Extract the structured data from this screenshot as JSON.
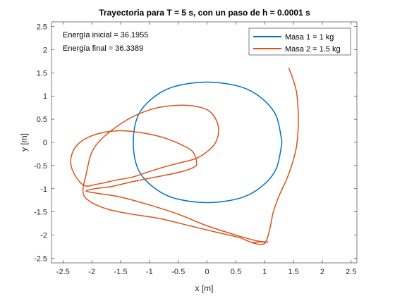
{
  "chart_data": {
    "type": "line",
    "title": "Trayectoria para T = 5 s, con un paso de h = 0.0001 s",
    "xlabel": "x [m]",
    "ylabel": "y [m]",
    "xlim": [
      -2.7,
      2.6
    ],
    "ylim": [
      -2.6,
      2.6
    ],
    "xticks": [
      -2.5,
      -2,
      -1.5,
      -1,
      -0.5,
      0,
      0.5,
      1,
      1.5,
      2,
      2.5
    ],
    "xtick_labels": [
      "-2.5",
      "-2",
      "-1.5",
      "-1",
      "-0.5",
      "0",
      "0.5",
      "1",
      "1.5",
      "2",
      "2.5"
    ],
    "yticks": [
      -2.5,
      -2,
      -1.5,
      -1,
      -0.5,
      0,
      0.5,
      1,
      1.5,
      2,
      2.5
    ],
    "ytick_labels": [
      "-2.5",
      "-2",
      "-1.5",
      "-1",
      "-0.5",
      "0",
      "0.5",
      "1",
      "1.5",
      "2",
      "2.5"
    ],
    "grid": false,
    "box": true,
    "legend_position": "top-right",
    "annotations": [
      "Energía inicial = 36.1955",
      "Energía final = 36.3389"
    ],
    "annotation_position": "top-left",
    "series": [
      {
        "name": "Masa 1 = 1 kg",
        "color": "#0072BD",
        "x": [
          1.3,
          1.2,
          0.95,
          0.58,
          0.0,
          -0.58,
          -0.95,
          -1.2,
          -1.28,
          -1.2,
          -0.95,
          -0.58,
          0.0,
          0.58,
          0.95,
          1.2,
          1.3
        ],
        "y": [
          0.0,
          0.57,
          0.95,
          1.2,
          1.3,
          1.2,
          0.95,
          0.57,
          0.0,
          -0.57,
          -0.95,
          -1.2,
          -1.3,
          -1.2,
          -0.95,
          -0.57,
          0.0
        ]
      },
      {
        "name": "Masa 2 = 1.5 kg",
        "color": "#D95319",
        "x": [
          1.42,
          1.48,
          1.55,
          1.58,
          1.58,
          1.55,
          1.48,
          1.38,
          1.25,
          1.15,
          1.1,
          1.05,
          1.0,
          0.9,
          0.75,
          0.55,
          0.2,
          -0.3,
          -0.8,
          -1.3,
          -1.7,
          -2.0,
          -2.15,
          -2.1,
          -1.95,
          -1.5,
          -1.0,
          -0.5,
          -0.1,
          0.1,
          0.2,
          0.15,
          0.0,
          -0.2,
          -0.5,
          -0.8,
          -1.05,
          -1.3,
          -1.6,
          -1.9,
          -2.15,
          -2.35,
          -2.33,
          -2.15,
          -1.85,
          -1.5,
          -1.1,
          -0.75,
          -0.45,
          -0.25,
          -0.18,
          -0.25,
          -0.5,
          -0.9,
          -1.3,
          -1.65,
          -1.95,
          -2.1,
          -1.9,
          -1.5,
          -1.0,
          -0.5,
          0.0,
          0.5,
          0.85,
          1.05,
          1.0,
          0.9,
          0.8
        ],
        "y": [
          1.6,
          1.4,
          1.1,
          0.7,
          0.3,
          -0.1,
          -0.45,
          -0.8,
          -1.15,
          -1.5,
          -1.8,
          -2.05,
          -2.18,
          -2.2,
          -2.15,
          -2.05,
          -1.95,
          -1.8,
          -1.65,
          -1.55,
          -1.45,
          -1.3,
          -1.1,
          -0.7,
          -0.1,
          0.4,
          0.7,
          0.8,
          0.75,
          0.6,
          0.3,
          0.0,
          -0.2,
          -0.35,
          -0.45,
          -0.55,
          -0.65,
          -0.75,
          -0.82,
          -0.9,
          -0.92,
          -0.55,
          -0.2,
          0.05,
          0.2,
          0.25,
          0.2,
          0.1,
          -0.05,
          -0.2,
          -0.45,
          -0.55,
          -0.65,
          -0.75,
          -0.85,
          -0.95,
          -1.0,
          -1.05,
          -1.1,
          -1.18,
          -1.35,
          -1.55,
          -1.8,
          -2.0,
          -2.12,
          -2.15,
          -2.15,
          -2.15,
          -2.16
        ]
      }
    ]
  },
  "colors": {
    "axes": "#262626",
    "plot_bg": "#ffffff",
    "figure_bg": "#ffffff"
  }
}
